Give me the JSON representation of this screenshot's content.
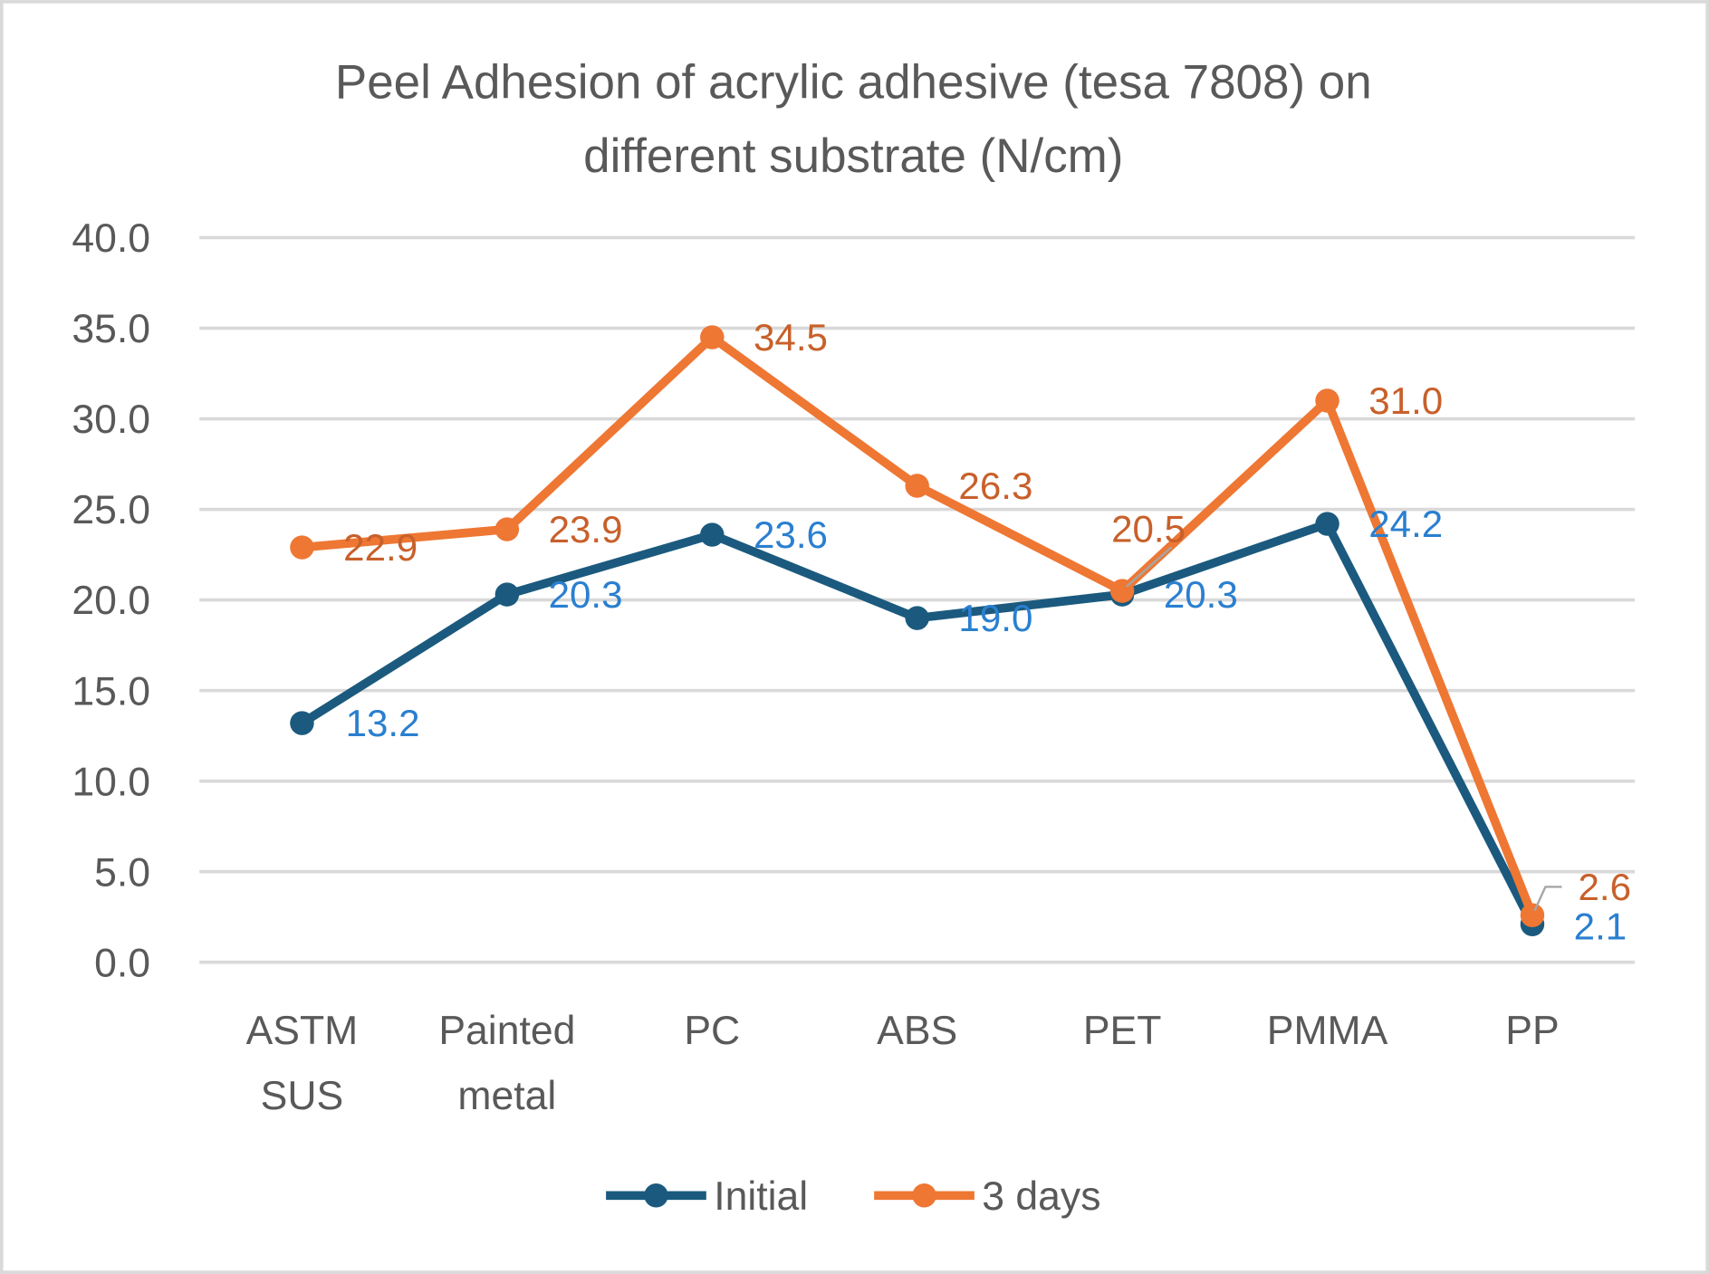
{
  "chart_data": {
    "type": "line",
    "title": [
      "Peel Adhesion of acrylic adhesive (tesa 7808) on",
      "different substrate (N/cm)"
    ],
    "categories": [
      [
        "ASTM",
        "SUS"
      ],
      [
        "Painted",
        "metal"
      ],
      [
        "PC"
      ],
      [
        "ABS"
      ],
      [
        "PET"
      ],
      [
        "PMMA"
      ],
      [
        "PP"
      ]
    ],
    "ylim": [
      0,
      40
    ],
    "yticks": [
      "0.0",
      "5.0",
      "10.0",
      "15.0",
      "20.0",
      "25.0",
      "30.0",
      "35.0",
      "40.0"
    ],
    "grid": true,
    "legend_position": "bottom",
    "series": [
      {
        "name": "Initial",
        "color": "#1b5a7e",
        "label_color": "#2a7fd0",
        "values": [
          13.2,
          20.3,
          23.6,
          19.0,
          20.3,
          24.2,
          2.1
        ],
        "labels": [
          "13.2",
          "20.3",
          "23.6",
          "19.0",
          "20.3",
          "24.2",
          "2.1"
        ]
      },
      {
        "name": "3 days",
        "color": "#ee7733",
        "label_color": "#c8602a",
        "values": [
          22.9,
          23.9,
          34.5,
          26.3,
          20.5,
          31.0,
          2.6
        ],
        "labels": [
          "22.9",
          "23.9",
          "34.5",
          "26.3",
          "20.5",
          "31.0",
          "2.6"
        ]
      }
    ]
  }
}
